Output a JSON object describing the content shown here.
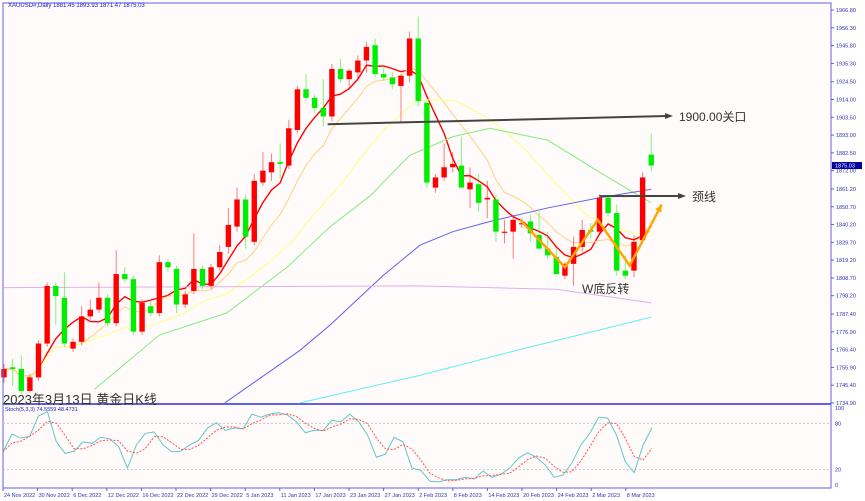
{
  "header": {
    "symbol_line": "XAUUSD#,Daily  1881.45 1893.93 1871.47 1875.03"
  },
  "stoch_label": "Stoch(5,3,3) 74.5559 48.4731",
  "caption": "2023年3月13日 黄金日K线",
  "annotations": {
    "level_label": "1900.00关口",
    "neckline_label": "颈线",
    "pattern_label": "W底反转"
  },
  "colors": {
    "up": "#ff0000",
    "down": "#00ee00",
    "background": "#fffbfa",
    "axis": "#6060e0",
    "ma5": "#ff0000",
    "ma10": "#ffd080",
    "ma20": "#ffff80",
    "ma_green": "#80ee80",
    "ma_blue": "#6060ee",
    "ma_cyan": "#60eeee",
    "ma_violet": "#e0b0e8",
    "pattern": "#ffa500",
    "arrow": "#444444",
    "stoch_k": "#60c8c8",
    "stoch_d": "#ff5050"
  },
  "chart_data": [
    {
      "type": "candlestick",
      "symbol": "XAUUSD#",
      "timeframe": "Daily",
      "ylim": [
        1734.9,
        1966.8
      ],
      "y_ticks": [
        "1966.80",
        "1956.30",
        "1945.80",
        "1935.30",
        "1924.50",
        "1914.00",
        "1903.50",
        "1893.00",
        "1882.50",
        "1872.00",
        "1861.20",
        "1850.70",
        "1840.20",
        "1829.70",
        "1819.20",
        "1808.70",
        "1798.20",
        "1787.40",
        "1776.90",
        "1766.40",
        "1755.90",
        "1745.40",
        "1734.90"
      ],
      "current_price": "1875.03",
      "x_ticks": [
        "24 Nov 2022",
        "30 Nov 2022",
        "6 Dec 2022",
        "12 Dec 2022",
        "16 Dec 2022",
        "22 Dec 2022",
        "29 Dec 2022",
        "5 Jan 2023",
        "11 Jan 2023",
        "17 Jan 2023",
        "23 Jan 2023",
        "27 Jan 2023",
        "2 Feb 2023",
        "8 Feb 2023",
        "14 Feb 2023",
        "20 Feb 2023",
        "24 Feb 2023",
        "2 Mar 2023",
        "8 Mar 2023"
      ],
      "ohlc": [
        [
          1750,
          1758,
          1747,
          1755
        ],
        [
          1756,
          1761,
          1745,
          1755
        ],
        [
          1755,
          1763,
          1740,
          1742
        ],
        [
          1742,
          1752,
          1741,
          1750
        ],
        [
          1750,
          1772,
          1748,
          1770
        ],
        [
          1770,
          1806,
          1768,
          1804
        ],
        [
          1804,
          1806,
          1781,
          1798
        ],
        [
          1797,
          1812,
          1768,
          1770
        ],
        [
          1767,
          1773,
          1765,
          1771
        ],
        [
          1771,
          1792,
          1769,
          1786
        ],
        [
          1786,
          1796,
          1784,
          1790
        ],
        [
          1790,
          1806,
          1788,
          1797
        ],
        [
          1797,
          1799,
          1780,
          1782
        ],
        [
          1782,
          1825,
          1780,
          1811
        ],
        [
          1811,
          1815,
          1806,
          1808
        ],
        [
          1808,
          1810,
          1775,
          1777
        ],
        [
          1777,
          1796,
          1775,
          1794
        ],
        [
          1792,
          1795,
          1786,
          1788
        ],
        [
          1788,
          1822,
          1786,
          1818
        ],
        [
          1818,
          1820,
          1812,
          1815
        ],
        [
          1814,
          1816,
          1788,
          1793
        ],
        [
          1793,
          1801,
          1791,
          1799
        ],
        [
          1801,
          1835,
          1799,
          1814
        ],
        [
          1814,
          1816,
          1802,
          1804
        ],
        [
          1804,
          1817,
          1802,
          1815
        ],
        [
          1815,
          1828,
          1813,
          1824
        ],
        [
          1827,
          1850,
          1823,
          1840
        ],
        [
          1839,
          1862,
          1836,
          1855
        ],
        [
          1855,
          1858,
          1826,
          1833
        ],
        [
          1830,
          1870,
          1828,
          1866
        ],
        [
          1865,
          1883,
          1863,
          1872
        ],
        [
          1871,
          1882,
          1866,
          1877
        ],
        [
          1877,
          1888,
          1867,
          1876
        ],
        [
          1875,
          1902,
          1873,
          1897
        ],
        [
          1896,
          1922,
          1894,
          1920
        ],
        [
          1920,
          1929,
          1913,
          1915
        ],
        [
          1915,
          1917,
          1906,
          1909
        ],
        [
          1909,
          1926,
          1898,
          1904
        ],
        [
          1904,
          1935,
          1901,
          1932
        ],
        [
          1932,
          1938,
          1924,
          1926
        ],
        [
          1926,
          1932,
          1920,
          1931
        ],
        [
          1930,
          1940,
          1926,
          1937
        ],
        [
          1937,
          1948,
          1930,
          1945
        ],
        [
          1946,
          1950,
          1927,
          1929
        ],
        [
          1929,
          1934,
          1925,
          1927
        ],
        [
          1927,
          1930,
          1920,
          1923
        ],
        [
          1922,
          1929,
          1901,
          1928
        ],
        [
          1928,
          1954,
          1924,
          1950
        ],
        [
          1950,
          1963,
          1910,
          1913
        ],
        [
          1912,
          1913,
          1862,
          1865
        ],
        [
          1862,
          1870,
          1859,
          1868
        ],
        [
          1868,
          1888,
          1866,
          1874
        ],
        [
          1874,
          1883,
          1871,
          1876
        ],
        [
          1875,
          1892,
          1862,
          1862
        ],
        [
          1861,
          1874,
          1850,
          1865
        ],
        [
          1864,
          1870,
          1848,
          1853
        ],
        [
          1855,
          1866,
          1844,
          1856
        ],
        [
          1855,
          1858,
          1830,
          1836
        ],
        [
          1836,
          1843,
          1829,
          1836
        ],
        [
          1836,
          1846,
          1820,
          1843
        ],
        [
          1841,
          1844,
          1838,
          1841
        ],
        [
          1842,
          1846,
          1830,
          1835
        ],
        [
          1834,
          1848,
          1826,
          1826
        ],
        [
          1826,
          1836,
          1820,
          1822
        ],
        [
          1821,
          1826,
          1810,
          1811
        ],
        [
          1810,
          1818,
          1808,
          1817
        ],
        [
          1817,
          1833,
          1804,
          1827
        ],
        [
          1827,
          1843,
          1824,
          1837
        ],
        [
          1837,
          1841,
          1832,
          1836
        ],
        [
          1836,
          1858,
          1834,
          1856
        ],
        [
          1856,
          1858,
          1845,
          1847
        ],
        [
          1847,
          1852,
          1810,
          1813
        ],
        [
          1813,
          1822,
          1808,
          1810
        ],
        [
          1813,
          1834,
          1809,
          1830
        ],
        [
          1831,
          1871,
          1829,
          1868
        ],
        [
          1881.45,
          1893.93,
          1871.47,
          1875.03
        ]
      ],
      "series": [
        {
          "kind": "sma",
          "period": 5,
          "color": "#ff0000"
        },
        {
          "kind": "sma",
          "period": 10,
          "color": "#ffd080"
        },
        {
          "kind": "sma",
          "period": 20,
          "color": "#ffff80"
        },
        {
          "kind": "line",
          "color": "#80ee80",
          "points": [
            [
              10.5,
              1743
            ],
            [
              18,
              1775
            ],
            [
              25.8,
              1788
            ],
            [
              32.8,
              1815
            ],
            [
              37.8,
              1839
            ],
            [
              42.4,
              1857
            ],
            [
              47,
              1881
            ],
            [
              52,
              1892
            ],
            [
              56.3,
              1897
            ],
            [
              63,
              1890
            ],
            [
              70,
              1868
            ],
            [
              75,
              1853
            ]
          ]
        },
        {
          "kind": "line",
          "color": "#6060ee",
          "points": [
            [
              25.6,
              1735
            ],
            [
              34.3,
              1766
            ],
            [
              37.8,
              1781
            ],
            [
              43.9,
              1810
            ],
            [
              48.2,
              1828
            ],
            [
              52,
              1836
            ],
            [
              56.3,
              1842
            ],
            [
              63,
              1850
            ],
            [
              69,
              1856
            ],
            [
              75,
              1861
            ]
          ]
        },
        {
          "kind": "line",
          "color": "#60eeee",
          "points": [
            [
              34.3,
              1735
            ],
            [
              48,
              1751
            ],
            [
              61,
              1768
            ],
            [
              69,
              1778
            ],
            [
              75,
              1785.6
            ]
          ]
        },
        {
          "kind": "line",
          "color": "#e0b0e8",
          "points": [
            [
              0,
              1803
            ],
            [
              48,
              1804
            ],
            [
              64,
              1802
            ],
            [
              75,
              1794
            ]
          ]
        }
      ],
      "levels": [
        {
          "price": 1900,
          "from_index": 37.5,
          "label_key": "level_label"
        },
        {
          "price": 1857,
          "from_index": 69,
          "label_key": "neckline_label"
        }
      ],
      "pattern_path": [
        [
          59.8,
          1843
        ],
        [
          65,
          1815
        ],
        [
          68.8,
          1843
        ],
        [
          72.5,
          1816
        ],
        [
          76.2,
          1852
        ]
      ]
    },
    {
      "type": "line",
      "indicator": "Stochastic",
      "params": [
        5,
        3,
        3
      ],
      "ylim": [
        0,
        100
      ],
      "levels": [
        20,
        80
      ],
      "y_ticks": [
        "100",
        "80",
        "20",
        "0"
      ],
      "k": [
        43,
        66,
        61,
        63,
        90,
        95,
        56,
        41,
        44,
        56,
        54,
        62,
        60,
        50,
        22,
        52,
        67,
        69,
        52,
        43,
        44,
        52,
        58,
        74,
        81,
        71,
        74,
        73,
        92,
        88,
        92,
        94,
        91,
        82,
        68,
        71,
        71,
        84,
        82,
        92,
        82,
        65,
        36,
        40,
        62,
        56,
        22,
        19,
        5,
        4,
        7,
        7,
        10,
        8,
        18,
        10,
        14,
        22,
        35,
        42,
        36,
        26,
        10,
        13,
        29,
        52,
        67,
        88,
        87,
        65,
        30,
        16,
        52,
        74.56
      ],
      "k_last": "74.5559",
      "d_last": "48.4731"
    }
  ]
}
